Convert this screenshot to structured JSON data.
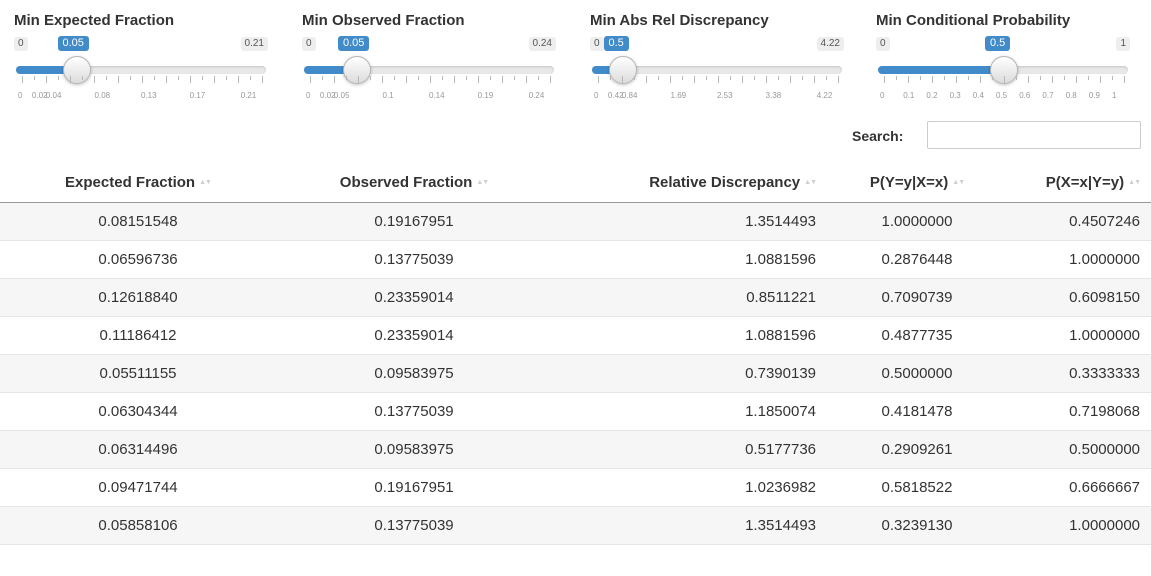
{
  "sliders": [
    {
      "title": "Min Expected Fraction",
      "min_label": "0",
      "current_label": "0.05",
      "max_label": "0.21",
      "fraction": 0.238,
      "tick_labels": [
        "0",
        "0.02",
        "0.04",
        "0.08",
        "0.13",
        "0.17",
        "0.21"
      ]
    },
    {
      "title": "Min Observed Fraction",
      "min_label": "0",
      "current_label": "0.05",
      "max_label": "0.24",
      "fraction": 0.208,
      "tick_labels": [
        "0",
        "0.02",
        "0.05",
        "0.1",
        "0.14",
        "0.19",
        "0.24"
      ]
    },
    {
      "title": "Min Abs Rel Discrepancy",
      "min_label": "0",
      "current_label": "0.5",
      "max_label": "4.22",
      "fraction": 0.118,
      "tick_labels": [
        "0",
        "0.42",
        "0.84",
        "1.69",
        "2.53",
        "3.38",
        "4.22"
      ]
    },
    {
      "title": "Min Conditional Probability",
      "min_label": "0",
      "current_label": "0.5",
      "max_label": "1",
      "fraction": 0.5,
      "tick_labels": [
        "0",
        "0.1",
        "0.2",
        "0.3",
        "0.4",
        "0.5",
        "0.6",
        "0.7",
        "0.8",
        "0.9",
        "1"
      ]
    }
  ],
  "search": {
    "label": "Search:",
    "value": "",
    "placeholder": ""
  },
  "table": {
    "columns": [
      "Expected Fraction",
      "Observed Fraction",
      "Relative Discrepancy",
      "P(Y=y|X=x)",
      "P(X=x|Y=y)"
    ],
    "rows": [
      [
        "0.08151548",
        "0.19167951",
        "1.3514493",
        "1.0000000",
        "0.4507246"
      ],
      [
        "0.06596736",
        "0.13775039",
        "1.0881596",
        "0.2876448",
        "1.0000000"
      ],
      [
        "0.12618840",
        "0.23359014",
        "0.8511221",
        "0.7090739",
        "0.6098150"
      ],
      [
        "0.11186412",
        "0.23359014",
        "1.0881596",
        "0.4877735",
        "1.0000000"
      ],
      [
        "0.05511155",
        "0.09583975",
        "0.7390139",
        "0.5000000",
        "0.3333333"
      ],
      [
        "0.06304344",
        "0.13775039",
        "1.1850074",
        "0.4181478",
        "0.7198068"
      ],
      [
        "0.06314496",
        "0.09583975",
        "0.5177736",
        "0.2909261",
        "0.5000000"
      ],
      [
        "0.09471744",
        "0.19167951",
        "1.0236982",
        "0.5818522",
        "0.6666667"
      ],
      [
        "0.05858106",
        "0.13775039",
        "1.3514493",
        "0.3239130",
        "1.0000000"
      ]
    ]
  },
  "colors": {
    "accent": "#428bca",
    "row_stripe": "#f6f6f6"
  },
  "icons": {
    "sort": "sort-both-icon"
  }
}
